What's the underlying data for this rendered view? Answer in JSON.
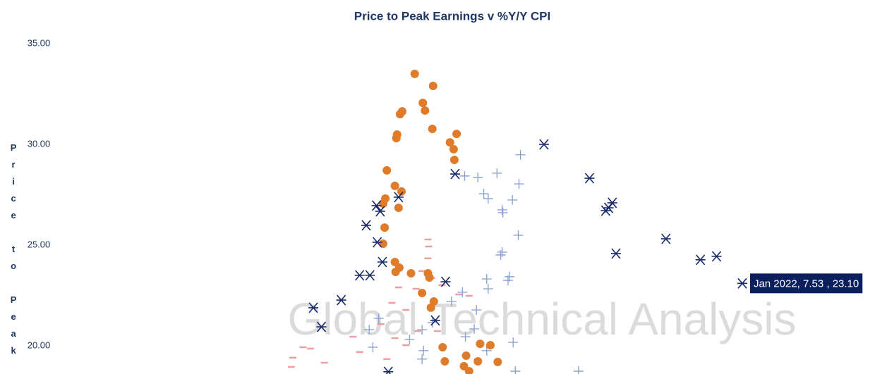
{
  "chart_data": {
    "type": "scatter",
    "title": "Price to Peak Earnings v %Y/Y CPI",
    "y_label": "Price to Peak",
    "watermark": "Global Technical Analysis",
    "annotation": "Jan 2022, 7.53 , 23.10",
    "xlim": [
      -2,
      9.5
    ],
    "ylim": [
      18.6,
      35.5
    ],
    "yticks": [
      {
        "value": 35,
        "label": "35.00"
      },
      {
        "value": 30,
        "label": "30.00"
      },
      {
        "value": 25,
        "label": "25.00"
      },
      {
        "value": 20,
        "label": "20.00"
      }
    ],
    "grid": false,
    "series": [
      {
        "marker": "dash",
        "color": "#e8a0a0",
        "x": [
          3.25,
          3.26,
          3.25,
          3.17,
          3.3,
          3.44,
          3.09,
          2.85,
          2.76,
          2.95,
          3.67,
          3.81,
          3.11,
          2.8,
          2.61,
          2.23,
          2.32,
          1.55,
          1.41,
          1.65,
          2.69,
          2.95,
          3.38,
          1.39,
          1.84
        ],
        "values": [
          25.28,
          24.93,
          24.34,
          23.71,
          23.36,
          23.01,
          22.83,
          22.9,
          22.13,
          21.78,
          22.55,
          22.48,
          20.73,
          20.38,
          21.08,
          20.45,
          19.69,
          19.93,
          19.41,
          19.86,
          19.34,
          20.03,
          20.73,
          18.95,
          19.16
        ]
      },
      {
        "marker": "plus",
        "color": "#8da4d4",
        "x": [
          4.51,
          4.19,
          3.93,
          3.75,
          4.49,
          4.01,
          4.07,
          4.26,
          4.4,
          4.27,
          4.48,
          4.26,
          4.24,
          4.05,
          4.36,
          4.34,
          4.07,
          3.72,
          3.91,
          3.57,
          3.88,
          3.31,
          3.17,
          2.45,
          2.58,
          3.0,
          3.19,
          2.5,
          4.05,
          4.41,
          3.76,
          3.17,
          4.44,
          5.3
        ],
        "values": [
          29.48,
          28.57,
          28.36,
          28.43,
          28.04,
          27.55,
          27.31,
          26.75,
          27.24,
          26.61,
          25.49,
          24.65,
          24.51,
          23.32,
          23.43,
          23.25,
          22.83,
          22.66,
          21.78,
          22.2,
          20.84,
          21.15,
          20.8,
          20.8,
          21.36,
          20.31,
          19.76,
          19.93,
          19.76,
          20.17,
          20.45,
          19.34,
          18.74,
          18.74
        ]
      },
      {
        "marker": "circle",
        "color": "#e07b2a",
        "x": [
          3.07,
          3.32,
          3.18,
          3.21,
          2.87,
          2.9,
          3.31,
          2.82,
          2.83,
          3.64,
          3.55,
          3.6,
          3.61,
          2.69,
          2.8,
          2.89,
          2.67,
          2.64,
          2.85,
          2.66,
          2.64,
          2.8,
          2.86,
          2.81,
          3.02,
          3.25,
          3.27,
          3.17,
          3.33,
          3.29,
          3.45,
          3.96,
          4.1,
          3.77,
          3.93,
          4.2,
          3.48,
          3.74,
          3.81
        ],
        "values": [
          33.5,
          32.9,
          32.06,
          31.68,
          31.5,
          31.64,
          30.77,
          30.31,
          30.49,
          30.52,
          30.1,
          29.76,
          29.23,
          28.71,
          27.94,
          27.66,
          27.31,
          27.06,
          26.85,
          25.87,
          25.07,
          24.16,
          23.88,
          23.67,
          23.6,
          23.6,
          23.39,
          22.62,
          22.2,
          21.89,
          19.93,
          20.1,
          20.03,
          19.51,
          19.23,
          19.2,
          19.23,
          18.99,
          18.74
        ]
      },
      {
        "marker": "asterisk",
        "color": "#1a2b6b",
        "x": [
          2.71,
          1.69,
          1.8,
          2.07,
          2.32,
          2.46,
          2.41,
          2.55,
          2.6,
          2.56,
          2.63,
          2.85,
          3.49,
          3.35,
          3.62,
          4.83,
          5.45,
          5.67,
          5.71,
          5.76,
          5.81,
          6.49,
          6.96,
          7.18,
          7.53
        ],
        "values": [
          18.71,
          21.89,
          20.94,
          22.27,
          23.5,
          23.5,
          25.98,
          26.96,
          26.68,
          25.14,
          24.16,
          27.38,
          23.18,
          21.26,
          28.53,
          30.0,
          28.32,
          26.71,
          26.85,
          27.1,
          24.58,
          25.31,
          24.27,
          24.44,
          23.1
        ]
      }
    ]
  }
}
